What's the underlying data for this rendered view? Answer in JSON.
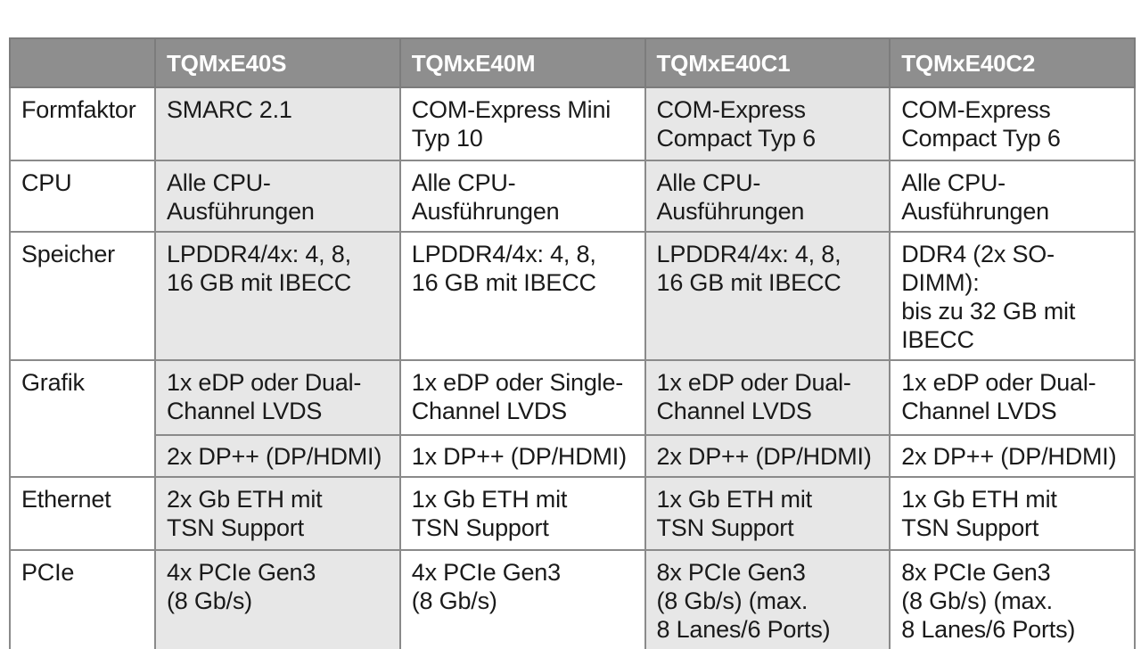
{
  "table": {
    "columns": [
      "",
      "TQMxE40S",
      "TQMxE40M",
      "TQMxE40C1",
      "TQMxE40C2"
    ],
    "rows": {
      "formfaktor": {
        "label": "Formfaktor",
        "cells": [
          "SMARC 2.1",
          "COM-Express Mini\nTyp 10",
          "COM-Express\nCompact Typ 6",
          "COM-Express\nCompact Typ 6"
        ]
      },
      "cpu": {
        "label": "CPU",
        "cells": [
          "Alle CPU-\nAusführungen",
          "Alle CPU-\nAusführungen",
          "Alle CPU-\nAusführungen",
          "Alle CPU-\nAusführungen"
        ]
      },
      "speicher": {
        "label": "Speicher",
        "cells": [
          "LPDDR4/4x: 4, 8,\n16 GB mit IBECC",
          "LPDDR4/4x: 4, 8,\n16 GB mit IBECC",
          "LPDDR4/4x: 4, 8,\n16 GB mit IBECC",
          "DDR4 (2x SO-DIMM):\nbis zu 32 GB mit\nIBECC"
        ]
      },
      "grafik": {
        "label": "Grafik",
        "cells": [
          "1x eDP oder Dual-\nChannel LVDS",
          "1x eDP oder Single-\nChannel LVDS",
          "1x eDP oder Dual-\nChannel LVDS",
          "1x eDP oder Dual-\nChannel LVDS"
        ],
        "cells2": [
          "2x DP++ (DP/HDMI)",
          "1x DP++ (DP/HDMI)",
          "2x DP++ (DP/HDMI)",
          "2x DP++ (DP/HDMI)"
        ]
      },
      "ethernet": {
        "label": "Ethernet",
        "cells": [
          "2x Gb ETH mit\nTSN Support",
          "1x Gb ETH mit\nTSN Support",
          "1x Gb ETH mit\nTSN Support",
          "1x Gb ETH mit\nTSN Support"
        ]
      },
      "pcie": {
        "label": "PCIe",
        "cells": [
          "4x PCIe Gen3\n(8 Gb/s)",
          "4x PCIe Gen3\n(8 Gb/s)",
          "8x PCIe Gen3\n(8 Gb/s) (max.\n8 Lanes/6 Ports)",
          "8x PCIe Gen3\n(8 Gb/s) (max.\n8 Lanes/6 Ports)"
        ]
      }
    }
  },
  "colors": {
    "header_bg": "#8e8e8e",
    "header_text": "#ffffff",
    "shaded_cell": "#e7e7e7",
    "border": "#8a8a8a"
  }
}
